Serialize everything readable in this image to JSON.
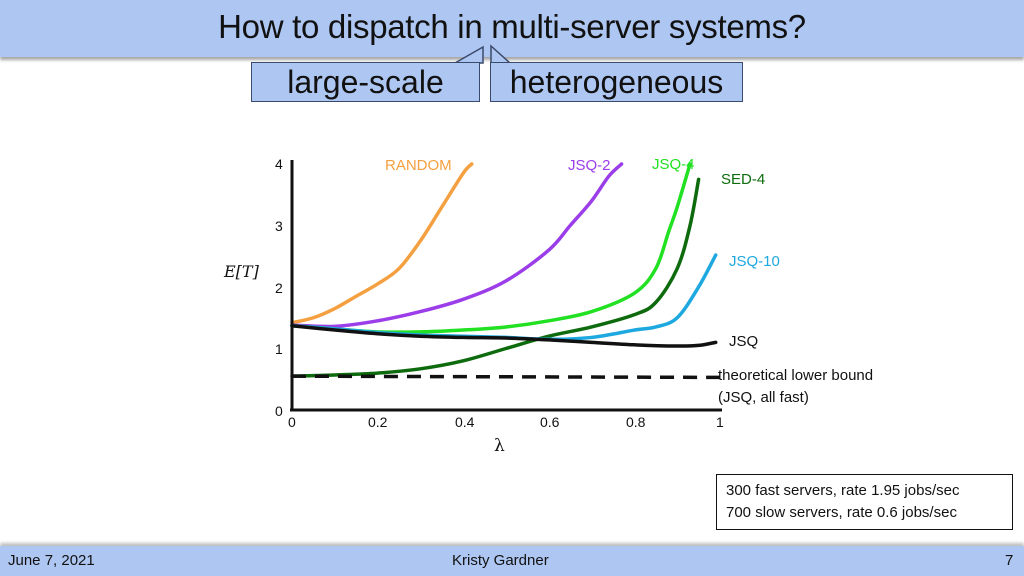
{
  "slide": {
    "title": "How to dispatch in multi-server systems?",
    "callouts": [
      "large-scale",
      "heterogeneous"
    ],
    "note": [
      "300 fast servers, rate 1.95 jobs/sec",
      "700 slow servers, rate 0.6 jobs/sec"
    ],
    "footer": {
      "date": "June 7, 2021",
      "author": "Kristy Gardner",
      "page": "7"
    }
  },
  "chart_data": {
    "type": "line",
    "title": "",
    "xlabel": "λ",
    "ylabel": "E[T]",
    "xlim": [
      0,
      1
    ],
    "ylim": [
      0,
      4
    ],
    "xticks": [
      "0",
      "0.2",
      "0.4",
      "0.6",
      "0.8",
      "1"
    ],
    "yticks": [
      "0",
      "1",
      "2",
      "3",
      "4"
    ],
    "grid": false,
    "legend": "inline labels",
    "series": [
      {
        "name": "RANDOM",
        "color": "#f4a041",
        "style": "solid",
        "x": [
          0,
          0.05,
          0.1,
          0.15,
          0.2,
          0.25,
          0.3,
          0.35,
          0.4,
          0.42
        ],
        "y": [
          1.42,
          1.5,
          1.65,
          1.85,
          2.05,
          2.3,
          2.75,
          3.3,
          3.85,
          4.0
        ]
      },
      {
        "name": "JSQ-2",
        "color": "#9b3de8",
        "style": "solid",
        "x": [
          0,
          0.1,
          0.2,
          0.3,
          0.4,
          0.5,
          0.6,
          0.65,
          0.7,
          0.74,
          0.77
        ],
        "y": [
          1.38,
          1.36,
          1.45,
          1.6,
          1.8,
          2.1,
          2.6,
          3.0,
          3.4,
          3.8,
          4.0
        ]
      },
      {
        "name": "JSQ-4",
        "color": "#22e022",
        "style": "solid",
        "x": [
          0,
          0.1,
          0.2,
          0.3,
          0.4,
          0.5,
          0.6,
          0.7,
          0.8,
          0.85,
          0.88,
          0.9,
          0.93
        ],
        "y": [
          1.37,
          1.32,
          1.27,
          1.27,
          1.3,
          1.35,
          1.45,
          1.6,
          1.9,
          2.3,
          2.9,
          3.3,
          4.0
        ]
      },
      {
        "name": "SED-4",
        "color": "#0d6b0d",
        "style": "solid",
        "x": [
          0,
          0.1,
          0.2,
          0.3,
          0.4,
          0.5,
          0.6,
          0.7,
          0.8,
          0.85,
          0.9,
          0.93,
          0.95
        ],
        "y": [
          0.55,
          0.57,
          0.6,
          0.67,
          0.8,
          1.0,
          1.2,
          1.35,
          1.55,
          1.75,
          2.3,
          3.0,
          3.75
        ]
      },
      {
        "name": "JSQ-10",
        "color": "#1ea8e0",
        "style": "solid",
        "x": [
          0,
          0.1,
          0.2,
          0.3,
          0.4,
          0.5,
          0.6,
          0.7,
          0.8,
          0.85,
          0.9,
          0.95,
          0.99
        ],
        "y": [
          1.37,
          1.32,
          1.26,
          1.22,
          1.2,
          1.18,
          1.15,
          1.18,
          1.3,
          1.35,
          1.5,
          2.0,
          2.52
        ]
      },
      {
        "name": "JSQ",
        "color": "#111111",
        "style": "solid",
        "x": [
          0,
          0.1,
          0.2,
          0.3,
          0.4,
          0.5,
          0.6,
          0.7,
          0.8,
          0.9,
          0.95,
          0.99
        ],
        "y": [
          1.37,
          1.3,
          1.24,
          1.2,
          1.18,
          1.17,
          1.14,
          1.1,
          1.06,
          1.04,
          1.05,
          1.1
        ]
      },
      {
        "name": "theoretical lower bound (JSQ, all fast)",
        "color": "#111111",
        "style": "dashed",
        "x": [
          0,
          1
        ],
        "y": [
          0.55,
          0.53
        ]
      }
    ]
  }
}
